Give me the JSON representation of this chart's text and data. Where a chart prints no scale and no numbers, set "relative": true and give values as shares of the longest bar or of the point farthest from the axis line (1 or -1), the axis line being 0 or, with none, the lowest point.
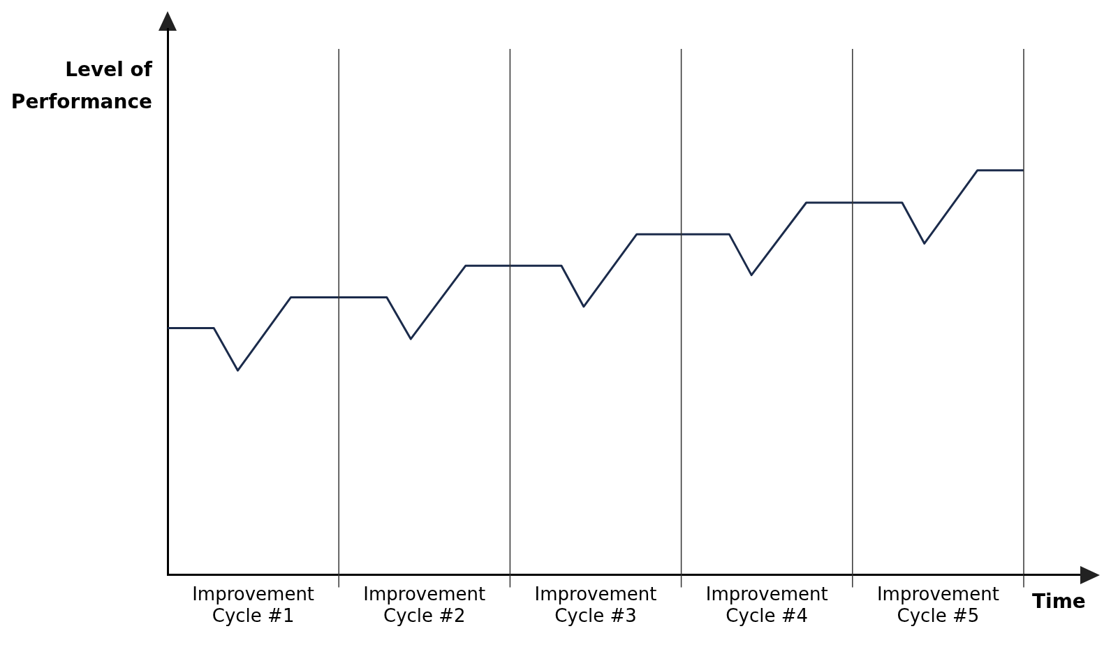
{
  "chart_data": {
    "type": "line",
    "xlabel": "Time",
    "ylabel": "Level of Performance",
    "relative": true,
    "x": [
      0,
      0.27,
      0.41,
      0.72,
      1.28,
      1.42,
      1.74,
      2.3,
      2.43,
      2.74,
      3.28,
      3.41,
      3.73,
      4.29,
      4.42,
      4.73,
      5
    ],
    "xlim": [
      0,
      5
    ],
    "xticks": [
      {
        "value": 0.5,
        "label": "Improvement Cycle #1"
      },
      {
        "value": 1.5,
        "label": "Improvement Cycle #2"
      },
      {
        "value": 2.5,
        "label": "Improvement Cycle #3"
      },
      {
        "value": 3.5,
        "label": "Improvement Cycle #4"
      },
      {
        "value": 4.5,
        "label": "Improvement Cycle #5"
      }
    ],
    "series": [
      {
        "color": "#1b2b4b",
        "values": [
          0.61,
          0.61,
          0.505,
          0.686,
          0.686,
          0.583,
          0.764,
          0.764,
          0.663,
          0.842,
          0.842,
          0.741,
          0.92,
          0.92,
          0.819,
          1,
          1
        ]
      }
    ],
    "ref_lines": [
      {
        "axis": "x",
        "value": 1,
        "color": "#333333"
      },
      {
        "axis": "x",
        "value": 2,
        "color": "#333333"
      },
      {
        "axis": "x",
        "value": 3,
        "color": "#333333"
      },
      {
        "axis": "x",
        "value": 4,
        "color": "#333333"
      },
      {
        "axis": "x",
        "value": 5,
        "color": "#333333"
      }
    ],
    "grid": false,
    "legend": false,
    "marker": "none",
    "line_style": "solid"
  }
}
